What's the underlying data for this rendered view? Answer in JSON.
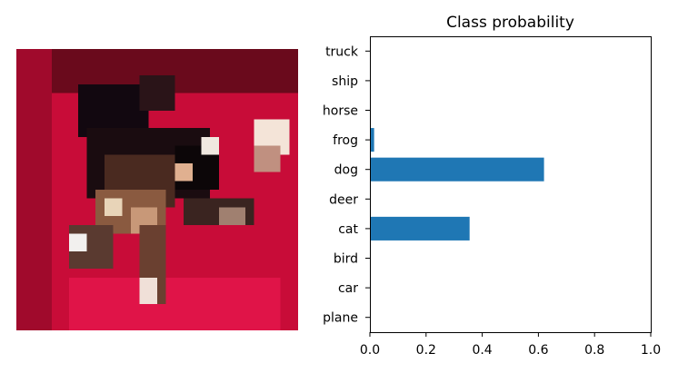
{
  "image": {
    "subject": "pixelated low-resolution photo of a dark cat lying on a red background",
    "colors": {
      "background": "#d0103c",
      "fur_dark": "#1a0a10",
      "fur_light": "#e8d0b0"
    }
  },
  "chart_data": {
    "type": "bar",
    "orientation": "horizontal",
    "title": "Class probability",
    "categories": [
      "plane",
      "car",
      "bird",
      "cat",
      "deer",
      "dog",
      "frog",
      "horse",
      "ship",
      "truck"
    ],
    "values": [
      0.0,
      0.0,
      0.0,
      0.355,
      0.0,
      0.62,
      0.015,
      0.0,
      0.0,
      0.0
    ],
    "xlim": [
      0,
      1
    ],
    "x_ticks": [
      "0.0",
      "0.2",
      "0.4",
      "0.6",
      "0.8",
      "1.0"
    ],
    "xlabel": "",
    "ylabel": "",
    "bar_color": "#1f77b4",
    "grid": false
  }
}
